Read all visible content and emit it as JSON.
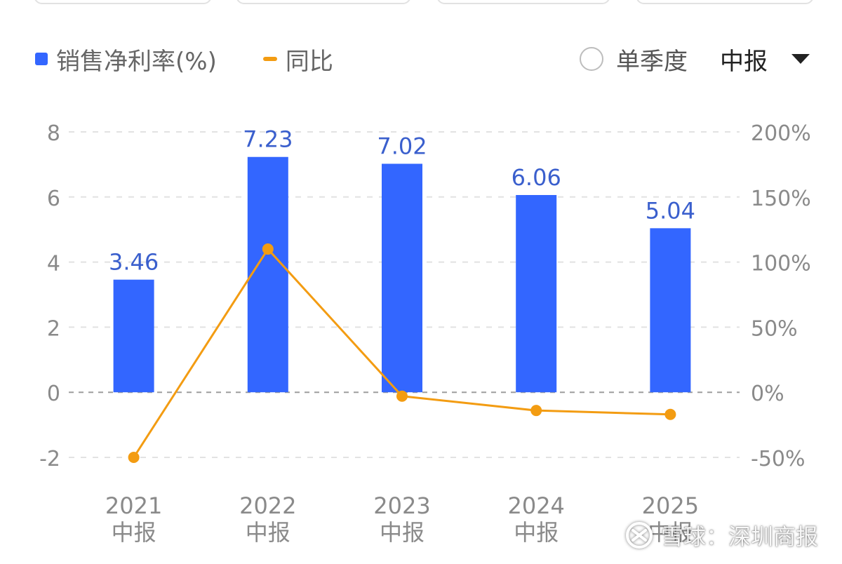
{
  "legend": {
    "bar_label": "销售净利率(%)",
    "line_label": "同比"
  },
  "controls": {
    "single_quarter_label": "单季度",
    "period_value": "中报"
  },
  "watermark": {
    "text": "雪球：深圳商报"
  },
  "colors": {
    "bar": "#3366ff",
    "line": "#f39c12",
    "label": "#3a5fcd",
    "axis_text": "#8a8a8a",
    "grid": "#e2e2e2",
    "zero": "#9e9e9e"
  },
  "chart_data": {
    "type": "bar",
    "categories": [
      "2021\n中报",
      "2022\n中报",
      "2023\n中报",
      "2024\n中报",
      "2025\n中报"
    ],
    "series": [
      {
        "name": "销售净利率(%)",
        "type": "bar",
        "axis": "left",
        "values": [
          3.46,
          7.23,
          7.02,
          6.06,
          5.04
        ]
      },
      {
        "name": "同比",
        "type": "line",
        "axis": "right",
        "values": [
          -50,
          110,
          -3,
          -14,
          -17
        ]
      }
    ],
    "data_labels": [
      "3.46",
      "7.23",
      "7.02",
      "6.06",
      "5.04"
    ],
    "y_left": {
      "min": -2,
      "max": 8,
      "ticks": [
        8,
        6,
        4,
        2,
        0,
        -2
      ],
      "tick_labels": [
        "8",
        "6",
        "4",
        "2",
        "0",
        "-2"
      ]
    },
    "y_right": {
      "min": -50,
      "max": 200,
      "ticks": [
        200,
        150,
        100,
        50,
        0,
        -50
      ],
      "tick_labels": [
        "200%",
        "150%",
        "100%",
        "50%",
        "0%",
        "-50%"
      ]
    },
    "grid": true,
    "legend_position": "top-left"
  }
}
